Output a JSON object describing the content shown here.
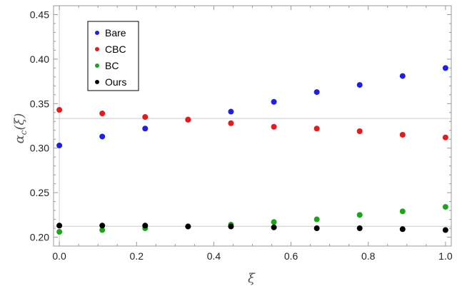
{
  "chart_data": {
    "type": "scatter",
    "title": "",
    "xlabel": "ξ",
    "ylabel": "α_c(ξ)",
    "ylabel_main": "α",
    "ylabel_sub": "c",
    "ylabel_tail": "(ξ)",
    "xlim": [
      -0.015,
      1.015
    ],
    "ylim": [
      0.19,
      0.46
    ],
    "x_ticks": [
      "0.0",
      "0.2",
      "0.4",
      "0.6",
      "0.8",
      "1.0"
    ],
    "x_tick_values": [
      0.0,
      0.2,
      0.4,
      0.6,
      0.8,
      1.0
    ],
    "y_ticks": [
      "0.20",
      "0.25",
      "0.30",
      "0.35",
      "0.40",
      "0.45"
    ],
    "y_tick_values": [
      0.2,
      0.25,
      0.3,
      0.35,
      0.4,
      0.45
    ],
    "reference_lines": [
      0.3333,
      0.2122
    ],
    "reference_color": "#cccccc",
    "frame_color": "#999999",
    "legend_position": "top-left",
    "x": [
      0.0,
      0.1111,
      0.2222,
      0.3333,
      0.4444,
      0.5556,
      0.6667,
      0.7778,
      0.8889,
      1.0
    ],
    "series": [
      {
        "name": "Bare",
        "color": "#1f1fe6",
        "values": [
          0.303,
          0.313,
          0.322,
          0.332,
          0.341,
          0.352,
          0.363,
          0.371,
          0.381,
          0.39
        ]
      },
      {
        "name": "CBC",
        "color": "#e6191c",
        "values": [
          0.343,
          0.339,
          0.335,
          0.332,
          0.328,
          0.324,
          0.322,
          0.319,
          0.315,
          0.312
        ]
      },
      {
        "name": "BC",
        "color": "#1aa51a",
        "values": [
          0.206,
          0.208,
          0.21,
          0.212,
          0.214,
          0.217,
          0.22,
          0.225,
          0.229,
          0.234
        ]
      },
      {
        "name": "Ours",
        "color": "#000000",
        "values": [
          0.213,
          0.213,
          0.213,
          0.212,
          0.212,
          0.211,
          0.21,
          0.21,
          0.209,
          0.208
        ]
      }
    ]
  }
}
